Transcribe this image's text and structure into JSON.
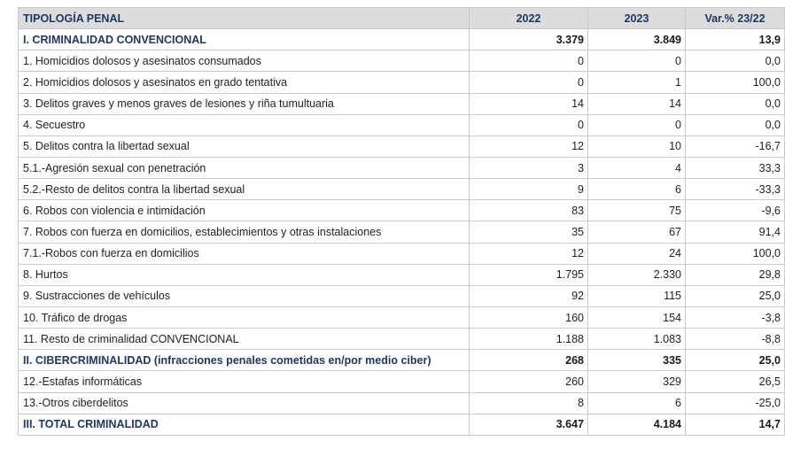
{
  "table": {
    "headers": [
      "TIPOLOGÍA PENAL",
      "2022",
      "2023",
      "Var.% 23/22"
    ],
    "rows": [
      {
        "label": "I. CRIMINALIDAD CONVENCIONAL",
        "y2022": "3.379",
        "y2023": "3.849",
        "var": "13,9",
        "section": true
      },
      {
        "label": "1. Homicidios dolosos y asesinatos consumados",
        "y2022": "0",
        "y2023": "0",
        "var": "0,0",
        "section": false
      },
      {
        "label": "2. Homicidios dolosos y asesinatos en grado tentativa",
        "y2022": "0",
        "y2023": "1",
        "var": "100,0",
        "section": false
      },
      {
        "label": "3. Delitos graves y menos graves de lesiones y riña tumultuaria",
        "y2022": "14",
        "y2023": "14",
        "var": "0,0",
        "section": false
      },
      {
        "label": "4. Secuestro",
        "y2022": "0",
        "y2023": "0",
        "var": "0,0",
        "section": false
      },
      {
        "label": "5. Delitos contra la libertad sexual",
        "y2022": "12",
        "y2023": "10",
        "var": "-16,7",
        "section": false
      },
      {
        "label": "5.1.-Agresión sexual con penetración",
        "y2022": "3",
        "y2023": "4",
        "var": "33,3",
        "section": false
      },
      {
        "label": "5.2.-Resto de delitos contra la libertad sexual",
        "y2022": "9",
        "y2023": "6",
        "var": "-33,3",
        "section": false
      },
      {
        "label": "6. Robos con violencia e intimidación",
        "y2022": "83",
        "y2023": "75",
        "var": "-9,6",
        "section": false
      },
      {
        "label": "7. Robos con fuerza en domicilios, establecimientos y otras instalaciones",
        "y2022": "35",
        "y2023": "67",
        "var": "91,4",
        "section": false
      },
      {
        "label": "7.1.-Robos con fuerza en domicilios",
        "y2022": "12",
        "y2023": "24",
        "var": "100,0",
        "section": false
      },
      {
        "label": "8. Hurtos",
        "y2022": "1.795",
        "y2023": "2.330",
        "var": "29,8",
        "section": false
      },
      {
        "label": "9. Sustracciones de vehículos",
        "y2022": "92",
        "y2023": "115",
        "var": "25,0",
        "section": false
      },
      {
        "label": "10. Tráfico de drogas",
        "y2022": "160",
        "y2023": "154",
        "var": "-3,8",
        "section": false
      },
      {
        "label": "11. Resto de criminalidad CONVENCIONAL",
        "y2022": "1.188",
        "y2023": "1.083",
        "var": "-8,8",
        "section": false
      },
      {
        "label": "II. CIBERCRIMINALIDAD (infracciones penales cometidas en/por medio ciber)",
        "y2022": "268",
        "y2023": "335",
        "var": "25,0",
        "section": true
      },
      {
        "label": "12.-Estafas informáticas",
        "y2022": "260",
        "y2023": "329",
        "var": "26,5",
        "section": false
      },
      {
        "label": "13.-Otros ciberdelitos",
        "y2022": "8",
        "y2023": "6",
        "var": "-25,0",
        "section": false
      },
      {
        "label": "III. TOTAL CRIMINALIDAD",
        "y2022": "3.647",
        "y2023": "4.184",
        "var": "14,7",
        "section": true
      }
    ]
  }
}
